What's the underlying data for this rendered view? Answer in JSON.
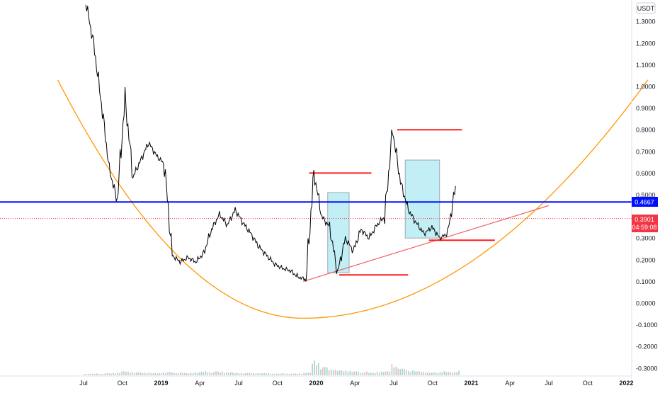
{
  "colors": {
    "background": "#ffffff",
    "price_line": "#000000",
    "curve": "#ff9800",
    "resistance": "#ff1e1e",
    "trendline": "#f06060",
    "box_fill": "#b2ebf2",
    "box_stroke": "#9fa8b5",
    "blue_line": "#0010ff",
    "current_price_tag": "#f23645",
    "axis_text": "#131722",
    "volume_up": "#26a69a",
    "volume_down": "#ef5350"
  },
  "price_axis": {
    "unit": "USDT",
    "ticks": [
      "1.3000",
      "1.2000",
      "1.1000",
      "1.0000",
      "0.9000",
      "0.8000",
      "0.7000",
      "0.6000",
      "0.5000",
      "0.3000",
      "0.2000",
      "0.1000",
      "0.0000",
      "-0.1000",
      "-0.2000",
      "-0.3000"
    ],
    "blue_line_label": "0.4667",
    "current_price_label": "0.3901",
    "countdown_label": "04:59:08"
  },
  "time_axis": {
    "ticks": [
      "Jul",
      "Oct",
      "2019",
      "Apr",
      "Jul",
      "Oct",
      "2020",
      "Apr",
      "Jul",
      "Oct",
      "2021",
      "Apr",
      "Jul",
      "Oct",
      "2022"
    ]
  },
  "chart_data": {
    "type": "line",
    "title": "",
    "xlabel": "",
    "ylabel": "USDT",
    "ylim": [
      -0.33,
      1.39
    ],
    "grid": false,
    "x": [
      "2018-07",
      "2018-08",
      "2018-08",
      "2018-08",
      "2018-09",
      "2018-09",
      "2018-09",
      "2018-10",
      "2018-10",
      "2018-11",
      "2018-11",
      "2018-12",
      "2018-12",
      "2019-01",
      "2019-01",
      "2019-02",
      "2019-03",
      "2019-04",
      "2019-04",
      "2019-05",
      "2019-05",
      "2019-06",
      "2019-07",
      "2019-08",
      "2019-09",
      "2019-10",
      "2019-11",
      "2019-12",
      "2020-01",
      "2020-02",
      "2020-02",
      "2020-03",
      "2020-03",
      "2020-03",
      "2020-04",
      "2020-05",
      "2020-06",
      "2020-07",
      "2020-08",
      "2020-08",
      "2020-08",
      "2020-09",
      "2020-09",
      "2020-10",
      "2020-10",
      "2020-11",
      "2020-11",
      "2020-12"
    ],
    "series": [
      {
        "values": [
          1.39,
          1.2,
          0.92,
          0.62,
          0.47,
          0.95,
          0.58,
          0.66,
          0.74,
          0.68,
          0.64,
          0.22,
          0.19,
          0.21,
          0.19,
          0.23,
          0.34,
          0.41,
          0.36,
          0.43,
          0.37,
          0.32,
          0.26,
          0.22,
          0.18,
          0.16,
          0.15,
          0.12,
          0.11,
          0.6,
          0.4,
          0.35,
          0.14,
          0.3,
          0.24,
          0.34,
          0.3,
          0.36,
          0.4,
          0.8,
          0.56,
          0.43,
          0.37,
          0.32,
          0.35,
          0.3,
          0.32,
          0.54
        ]
      }
    ],
    "volume": [
      3,
      4,
      5,
      6,
      8,
      12,
      10,
      9,
      8,
      7,
      9,
      10,
      8,
      7,
      9,
      11,
      10,
      12,
      9,
      8,
      7,
      8,
      6,
      7,
      5,
      6,
      5,
      6,
      8,
      40,
      25,
      20,
      15,
      14,
      12,
      10,
      8,
      11,
      12,
      30,
      20,
      14,
      12,
      10,
      9,
      11,
      10,
      14
    ],
    "annotations": {
      "blue_horizontal_line": 0.4667,
      "current_price_line": 0.3901,
      "resistance_levels": [
        0.6,
        0.8
      ],
      "support_levels": [
        0.13,
        0.29
      ],
      "boxes": [
        {
          "from": "2020-02",
          "to": "2020-03",
          "top": 0.51,
          "bottom": 0.14
        },
        {
          "from": "2020-08",
          "to": "2020-10",
          "top": 0.66,
          "bottom": 0.3
        }
      ],
      "trendline": {
        "from": [
          "2019-12",
          0.1
        ],
        "to": [
          "2021-07",
          0.45
        ]
      },
      "parabolic_curve": {
        "left": [
          "2018-05",
          1.03
        ],
        "min": [
          "2019-12",
          -0.07
        ],
        "right": [
          "2022-02",
          1.03
        ]
      }
    }
  }
}
